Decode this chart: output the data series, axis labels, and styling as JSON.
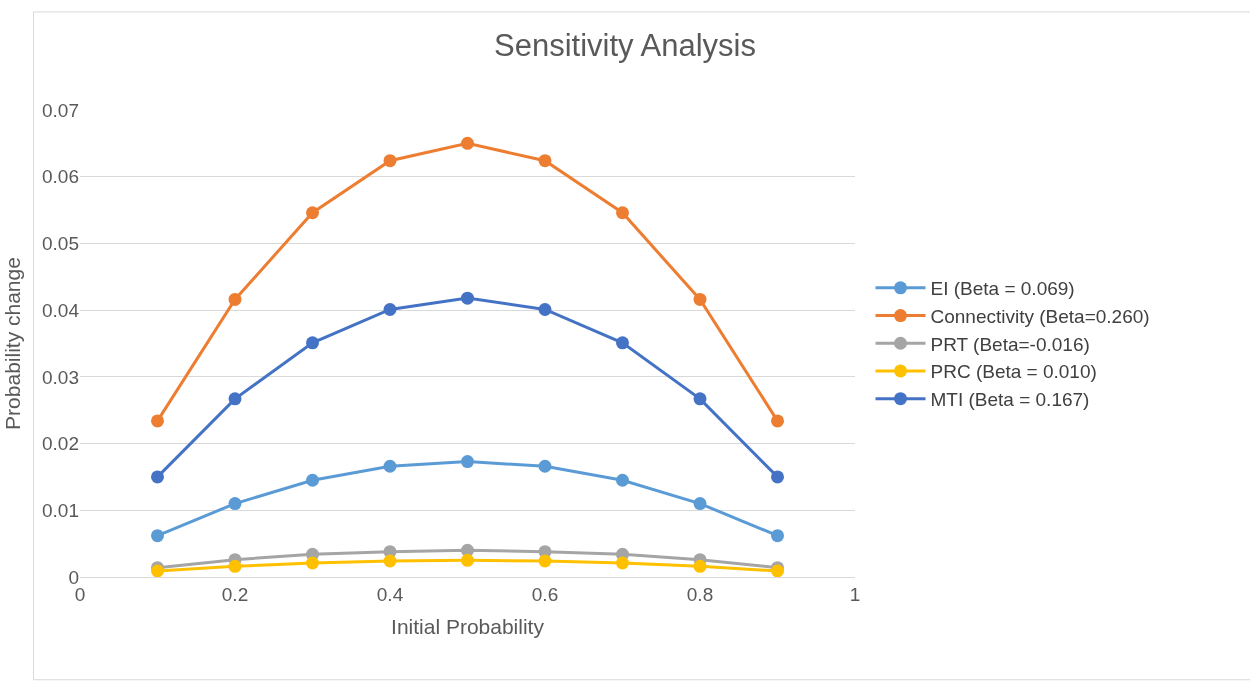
{
  "chart_data": {
    "type": "line",
    "title": "Sensitivity Analysis",
    "xlabel": "Initial Probability",
    "ylabel": "Probability change",
    "x": [
      0.1,
      0.2,
      0.3,
      0.4,
      0.5,
      0.6,
      0.7,
      0.8,
      0.9
    ],
    "series": [
      {
        "name": "EI (Beta = 0.069)",
        "color": "#5b9bd5",
        "values": [
          0.0062,
          0.011,
          0.0145,
          0.0166,
          0.0173,
          0.0166,
          0.0145,
          0.011,
          0.0062
        ]
      },
      {
        "name": "Connectivity (Beta=0.260)",
        "color": "#ed7d31",
        "values": [
          0.0234,
          0.0416,
          0.0546,
          0.0624,
          0.065,
          0.0624,
          0.0546,
          0.0416,
          0.0234
        ]
      },
      {
        "name": "PRT (Beta=-0.016)",
        "color": "#a5a5a5",
        "values": [
          0.0014,
          0.0026,
          0.0034,
          0.0038,
          0.004,
          0.0038,
          0.0034,
          0.0026,
          0.0014
        ]
      },
      {
        "name": "PRC (Beta = 0.010)",
        "color": "#ffc000",
        "values": [
          0.0009,
          0.0016,
          0.0021,
          0.0024,
          0.0025,
          0.0024,
          0.0021,
          0.0016,
          0.0009
        ]
      },
      {
        "name": "MTI (Beta = 0.167)",
        "color": "#4472c4",
        "values": [
          0.015,
          0.0267,
          0.0351,
          0.0401,
          0.0418,
          0.0401,
          0.0351,
          0.0267,
          0.015
        ]
      }
    ],
    "xlim": [
      0,
      1
    ],
    "xticks": [
      0,
      0.2,
      0.4,
      0.6,
      0.8,
      1
    ],
    "ylim": [
      0,
      0.07
    ],
    "yticks": [
      0,
      0.01,
      0.02,
      0.03,
      0.04,
      0.05,
      0.06,
      0.07
    ],
    "grid": "y",
    "legend": "right",
    "marker": "circle",
    "line_style": "solid"
  }
}
